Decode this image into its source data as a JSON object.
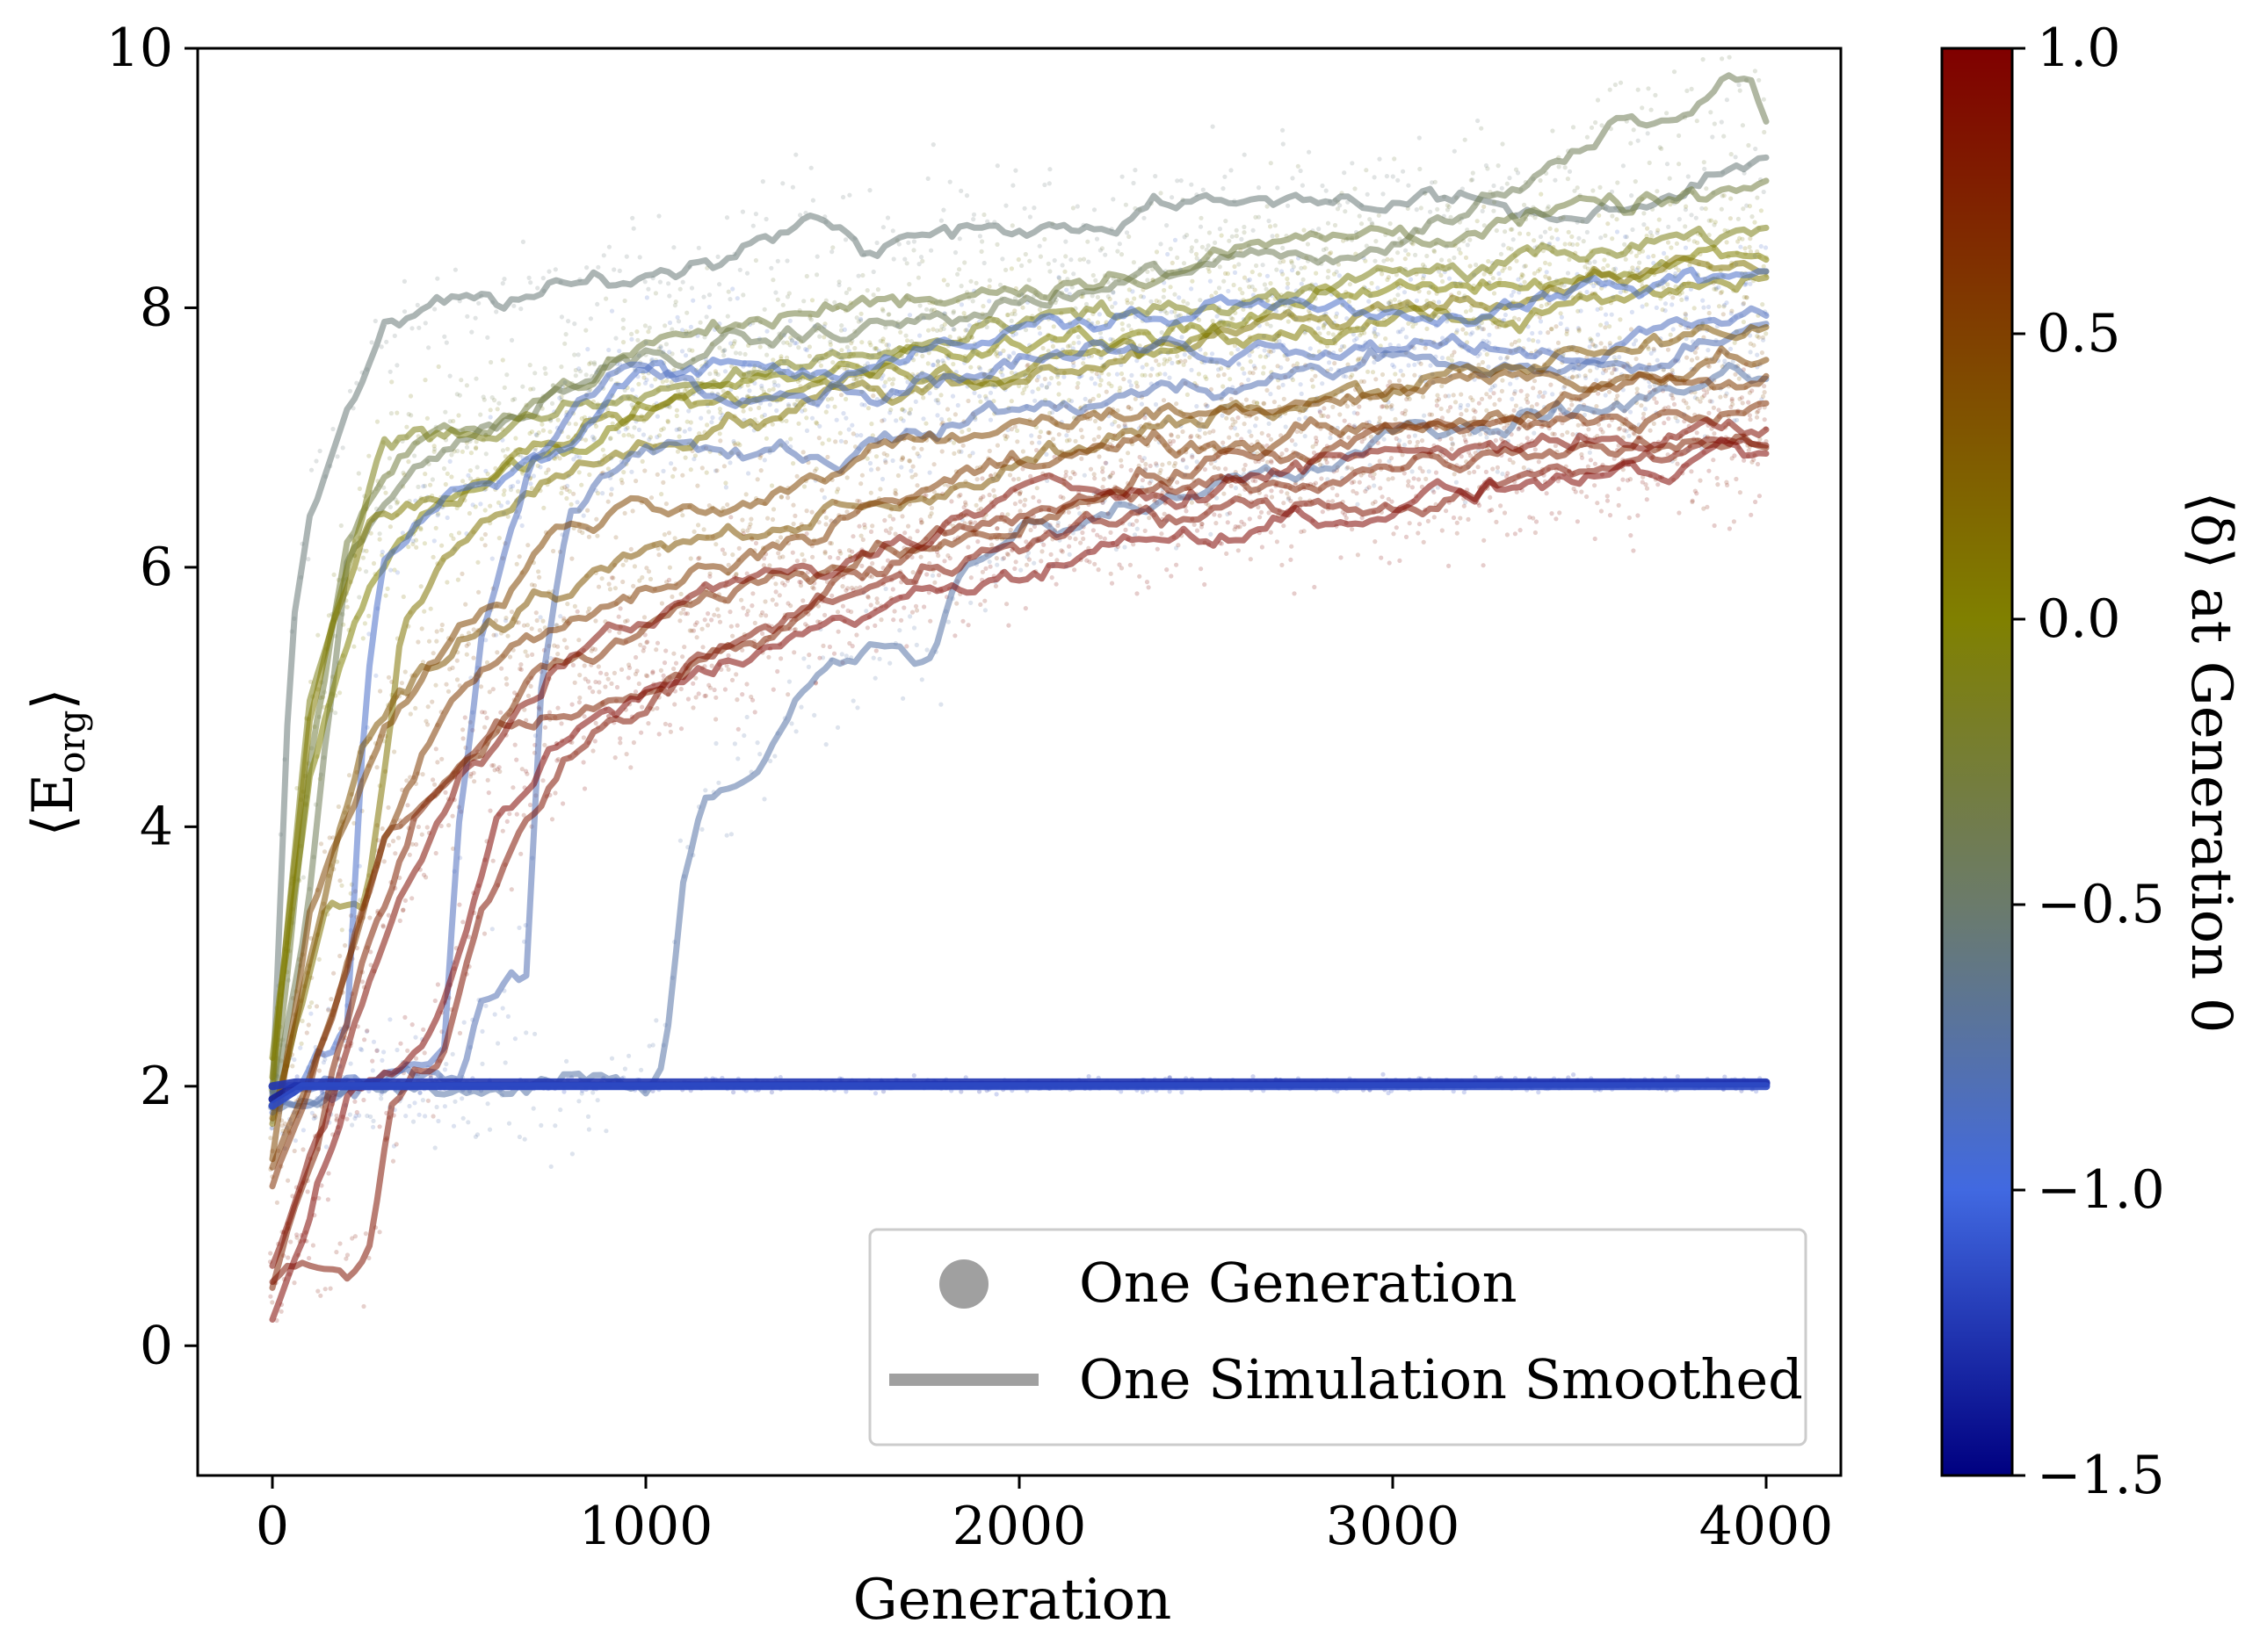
{
  "chart_data": {
    "type": "scatter",
    "title": "",
    "xlabel": "Generation",
    "ylabel": "⟨E_org⟩",
    "ylabel_main": "⟨E",
    "ylabel_sub": "org",
    "ylabel_close": "⟩",
    "xlim": [
      -200,
      4200
    ],
    "ylim": [
      -1,
      10
    ],
    "xticks": [
      0,
      1000,
      2000,
      3000,
      4000
    ],
    "xtick_labels": [
      "0",
      "1000",
      "2000",
      "3000",
      "4000"
    ],
    "yticks": [
      0,
      2,
      4,
      6,
      8,
      10
    ],
    "ytick_labels": [
      "0",
      "2",
      "4",
      "6",
      "8",
      "10"
    ],
    "grid": false,
    "legend_position": "lower-right",
    "legend": [
      {
        "label": "One Generation",
        "marker": "circle",
        "color": "#a0a0a0"
      },
      {
        "label": "One Simulation Smoothed",
        "marker": "line",
        "color": "#a0a0a0"
      }
    ],
    "colorbar": {
      "label": "⟨δ⟩ at Generation 0",
      "range": [
        -1.5,
        1.0
      ],
      "ticks": [
        1.0,
        0.5,
        0.0,
        -0.5,
        -1.0,
        -1.5
      ],
      "tick_labels": [
        "1.0",
        "0.5",
        "0.0",
        "−0.5",
        "−1.0",
        "−1.5"
      ],
      "stops": [
        {
          "value": -1.5,
          "color": "#000080"
        },
        {
          "value": -1.0,
          "color": "#4169e1"
        },
        {
          "value": -0.5,
          "color": "#6b7b6b"
        },
        {
          "value": 0.0,
          "color": "#808000"
        },
        {
          "value": 1.0,
          "color": "#800000"
        }
      ]
    },
    "series": [
      {
        "delta": -0.55,
        "points": [
          [
            0,
            1.9
          ],
          [
            50,
            5.5
          ],
          [
            100,
            6.4
          ],
          [
            200,
            7.2
          ],
          [
            300,
            7.8
          ],
          [
            500,
            8.0
          ],
          [
            800,
            8.1
          ],
          [
            1200,
            8.4
          ],
          [
            1450,
            8.8
          ],
          [
            1600,
            8.5
          ],
          [
            2000,
            8.6
          ],
          [
            2500,
            8.8
          ],
          [
            3000,
            8.9
          ],
          [
            3500,
            8.6
          ],
          [
            4000,
            9.2
          ]
        ]
      },
      {
        "delta": -0.4,
        "points": [
          [
            0,
            1.8
          ],
          [
            100,
            3.5
          ],
          [
            200,
            6.0
          ],
          [
            300,
            6.5
          ],
          [
            500,
            7.0
          ],
          [
            1000,
            7.6
          ],
          [
            1500,
            7.8
          ],
          [
            2000,
            8.0
          ],
          [
            2500,
            8.3
          ],
          [
            3000,
            8.5
          ],
          [
            3500,
            9.2
          ],
          [
            3600,
            9.5
          ],
          [
            3800,
            9.6
          ],
          [
            3950,
            9.9
          ],
          [
            4000,
            9.6
          ]
        ]
      },
      {
        "delta": -0.3,
        "points": [
          [
            0,
            1.9
          ],
          [
            100,
            4.5
          ],
          [
            200,
            6.2
          ],
          [
            350,
            6.8
          ],
          [
            600,
            7.2
          ],
          [
            1000,
            7.7
          ],
          [
            1500,
            8.0
          ],
          [
            2000,
            8.2
          ],
          [
            2500,
            8.4
          ],
          [
            3000,
            8.6
          ],
          [
            3500,
            8.7
          ],
          [
            4000,
            8.9
          ]
        ]
      },
      {
        "delta": -0.1,
        "points": [
          [
            0,
            2.0
          ],
          [
            100,
            5.0
          ],
          [
            200,
            6.0
          ],
          [
            300,
            7.1
          ],
          [
            500,
            7.0
          ],
          [
            1000,
            7.3
          ],
          [
            1500,
            7.6
          ],
          [
            2000,
            7.8
          ],
          [
            2500,
            8.0
          ],
          [
            3000,
            8.2
          ],
          [
            3500,
            8.4
          ],
          [
            4000,
            8.5
          ]
        ]
      },
      {
        "delta": 0.0,
        "points": [
          [
            0,
            2.2
          ],
          [
            100,
            4.5
          ],
          [
            200,
            5.5
          ],
          [
            350,
            6.3
          ],
          [
            600,
            6.8
          ],
          [
            1000,
            7.2
          ],
          [
            1500,
            7.5
          ],
          [
            2000,
            7.7
          ],
          [
            2500,
            7.9
          ],
          [
            3000,
            8.1
          ],
          [
            3500,
            8.3
          ],
          [
            4000,
            8.4
          ]
        ]
      },
      {
        "delta": 0.1,
        "points": [
          [
            0,
            1.7
          ],
          [
            150,
            3.5
          ],
          [
            250,
            3.4
          ],
          [
            350,
            5.6
          ],
          [
            600,
            6.5
          ],
          [
            1000,
            7.0
          ],
          [
            1500,
            7.3
          ],
          [
            2000,
            7.5
          ],
          [
            2500,
            7.8
          ],
          [
            3000,
            8.0
          ],
          [
            3500,
            8.2
          ],
          [
            4000,
            8.3
          ]
        ]
      },
      {
        "delta": 0.05,
        "points": [
          [
            0,
            2.0
          ],
          [
            100,
            4.8
          ],
          [
            250,
            6.2
          ],
          [
            400,
            6.5
          ],
          [
            700,
            6.9
          ],
          [
            1000,
            7.2
          ],
          [
            1500,
            7.4
          ],
          [
            2000,
            7.6
          ],
          [
            2500,
            7.7
          ],
          [
            3000,
            7.9
          ],
          [
            3500,
            8.0
          ],
          [
            4000,
            8.2
          ]
        ]
      },
      {
        "delta": -0.9,
        "points": [
          [
            0,
            1.8
          ],
          [
            80,
            2.0
          ],
          [
            120,
            2.2
          ],
          [
            200,
            2.4
          ],
          [
            250,
            5.0
          ],
          [
            300,
            6.0
          ],
          [
            500,
            6.6
          ],
          [
            800,
            7.0
          ],
          [
            1000,
            7.5
          ],
          [
            1500,
            7.6
          ],
          [
            2000,
            7.8
          ],
          [
            2500,
            8.0
          ],
          [
            3000,
            8.0
          ],
          [
            3500,
            8.1
          ],
          [
            4000,
            8.2
          ]
        ]
      },
      {
        "delta": -0.85,
        "points": [
          [
            0,
            1.9
          ],
          [
            400,
            2.1
          ],
          [
            460,
            2.2
          ],
          [
            500,
            4.0
          ],
          [
            560,
            5.5
          ],
          [
            700,
            6.8
          ],
          [
            900,
            7.6
          ],
          [
            1200,
            7.5
          ],
          [
            1600,
            7.4
          ],
          [
            2000,
            7.6
          ],
          [
            2500,
            7.7
          ],
          [
            3000,
            7.8
          ],
          [
            3500,
            7.7
          ],
          [
            4000,
            7.9
          ]
        ]
      },
      {
        "delta": -0.8,
        "points": [
          [
            0,
            1.9
          ],
          [
            500,
            2.1
          ],
          [
            560,
            2.7
          ],
          [
            620,
            2.8
          ],
          [
            680,
            2.9
          ],
          [
            720,
            5.2
          ],
          [
            800,
            6.5
          ],
          [
            1000,
            7.0
          ],
          [
            1500,
            6.9
          ],
          [
            2000,
            7.2
          ],
          [
            2500,
            7.4
          ],
          [
            3000,
            7.6
          ],
          [
            3500,
            7.5
          ],
          [
            4000,
            7.8
          ]
        ]
      },
      {
        "delta": -0.75,
        "points": [
          [
            0,
            1.9
          ],
          [
            1000,
            2.0
          ],
          [
            1050,
            2.3
          ],
          [
            1100,
            3.6
          ],
          [
            1150,
            4.2
          ],
          [
            1300,
            4.5
          ],
          [
            1400,
            4.9
          ],
          [
            1500,
            5.2
          ],
          [
            1650,
            5.4
          ],
          [
            1750,
            5.2
          ],
          [
            1850,
            5.9
          ],
          [
            2000,
            6.2
          ],
          [
            2500,
            6.7
          ],
          [
            3000,
            7.0
          ],
          [
            3500,
            7.2
          ],
          [
            4000,
            7.5
          ]
        ]
      },
      {
        "delta": 0.35,
        "points": [
          [
            0,
            1.7
          ],
          [
            100,
            3.0
          ],
          [
            250,
            4.6
          ],
          [
            400,
            5.2
          ],
          [
            600,
            5.6
          ],
          [
            1000,
            6.1
          ],
          [
            1500,
            6.4
          ],
          [
            2000,
            6.8
          ],
          [
            2500,
            7.1
          ],
          [
            3000,
            7.4
          ],
          [
            3500,
            7.6
          ],
          [
            4000,
            7.8
          ]
        ]
      },
      {
        "delta": 0.45,
        "points": [
          [
            0,
            1.5
          ],
          [
            100,
            3.3
          ],
          [
            300,
            4.8
          ],
          [
            500,
            5.5
          ],
          [
            800,
            6.4
          ],
          [
            1200,
            6.6
          ],
          [
            1600,
            6.8
          ],
          [
            2000,
            7.1
          ],
          [
            2500,
            7.2
          ],
          [
            3000,
            7.4
          ],
          [
            3500,
            7.5
          ],
          [
            4000,
            7.6
          ]
        ]
      },
      {
        "delta": 0.55,
        "points": [
          [
            0,
            1.4
          ],
          [
            150,
            2.5
          ],
          [
            300,
            4.0
          ],
          [
            500,
            5.1
          ],
          [
            800,
            5.6
          ],
          [
            1200,
            6.0
          ],
          [
            1600,
            6.5
          ],
          [
            2000,
            6.8
          ],
          [
            2500,
            7.0
          ],
          [
            3000,
            7.1
          ],
          [
            3500,
            7.3
          ],
          [
            4000,
            7.4
          ]
        ]
      },
      {
        "delta": 0.65,
        "points": [
          [
            0,
            1.2
          ],
          [
            100,
            2.0
          ],
          [
            300,
            3.8
          ],
          [
            500,
            4.4
          ],
          [
            700,
            5.1
          ],
          [
            1000,
            5.5
          ],
          [
            1500,
            6.0
          ],
          [
            2000,
            6.4
          ],
          [
            2500,
            6.8
          ],
          [
            3000,
            7.0
          ],
          [
            3500,
            7.1
          ],
          [
            4000,
            7.2
          ]
        ]
      },
      {
        "delta": 0.75,
        "points": [
          [
            0,
            0.5
          ],
          [
            120,
            1.5
          ],
          [
            250,
            3.0
          ],
          [
            400,
            4.1
          ],
          [
            600,
            4.8
          ],
          [
            1000,
            5.1
          ],
          [
            1300,
            5.4
          ],
          [
            1600,
            6.0
          ],
          [
            2000,
            6.4
          ],
          [
            2500,
            6.6
          ],
          [
            3000,
            6.8
          ],
          [
            3500,
            7.0
          ],
          [
            4000,
            7.0
          ]
        ]
      },
      {
        "delta": 0.85,
        "points": [
          [
            0,
            0.5
          ],
          [
            100,
            0.6
          ],
          [
            200,
            0.6
          ],
          [
            260,
            0.8
          ],
          [
            320,
            1.8
          ],
          [
            380,
            2.1
          ],
          [
            450,
            2.2
          ],
          [
            550,
            3.3
          ],
          [
            650,
            4.0
          ],
          [
            800,
            4.6
          ],
          [
            1000,
            4.9
          ],
          [
            1300,
            5.5
          ],
          [
            1600,
            5.9
          ],
          [
            2000,
            6.2
          ],
          [
            2500,
            6.4
          ],
          [
            3000,
            6.5
          ],
          [
            3500,
            6.8
          ],
          [
            4000,
            6.9
          ]
        ]
      },
      {
        "delta": 0.95,
        "points": [
          [
            0,
            0.2
          ],
          [
            100,
            1.0
          ],
          [
            200,
            2.0
          ],
          [
            300,
            2.1
          ],
          [
            400,
            2.2
          ],
          [
            480,
            2.8
          ],
          [
            600,
            4.1
          ],
          [
            750,
            4.6
          ],
          [
            1000,
            5.0
          ],
          [
            1300,
            5.3
          ],
          [
            1600,
            5.7
          ],
          [
            2000,
            6.0
          ],
          [
            2500,
            6.3
          ],
          [
            3000,
            6.5
          ],
          [
            3500,
            6.7
          ],
          [
            4000,
            6.8
          ]
        ]
      },
      {
        "delta": 0.9,
        "points": [
          [
            0,
            0.6
          ],
          [
            150,
            1.8
          ],
          [
            300,
            3.2
          ],
          [
            500,
            4.5
          ],
          [
            800,
            5.3
          ],
          [
            1200,
            5.8
          ],
          [
            1600,
            6.1
          ],
          [
            2000,
            6.5
          ],
          [
            2500,
            6.7
          ],
          [
            3000,
            6.9
          ],
          [
            3500,
            7.0
          ],
          [
            4000,
            7.1
          ]
        ]
      },
      {
        "delta": -1.35,
        "points": [
          [
            0,
            1.9
          ],
          [
            60,
            2.0
          ],
          [
            4000,
            2.02
          ]
        ]
      },
      {
        "delta": -1.25,
        "points": [
          [
            0,
            2.0
          ],
          [
            60,
            2.03
          ],
          [
            4000,
            2.03
          ]
        ]
      },
      {
        "delta": -1.15,
        "points": [
          [
            0,
            1.85
          ],
          [
            80,
            2.0
          ],
          [
            4000,
            2.0
          ]
        ]
      }
    ]
  }
}
